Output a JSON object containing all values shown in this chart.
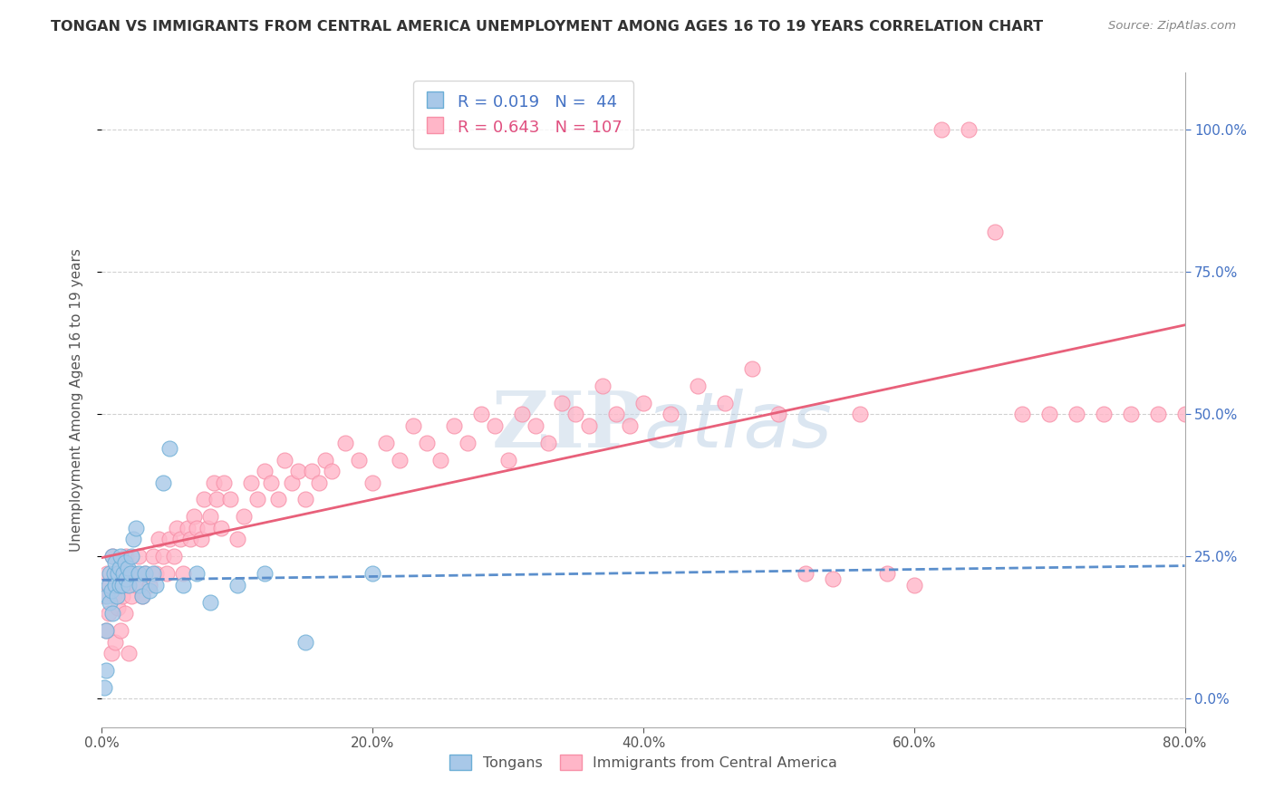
{
  "title": "TONGAN VS IMMIGRANTS FROM CENTRAL AMERICA UNEMPLOYMENT AMONG AGES 16 TO 19 YEARS CORRELATION CHART",
  "source": "Source: ZipAtlas.com",
  "ylabel": "Unemployment Among Ages 16 to 19 years",
  "xlim": [
    0.0,
    0.8
  ],
  "ylim": [
    -0.05,
    1.1
  ],
  "tongan_R": 0.019,
  "tongan_N": 44,
  "central_america_R": 0.643,
  "central_america_N": 107,
  "tongan_color": "#a8c8e8",
  "tongan_edge_color": "#6baed6",
  "central_america_color": "#ffb6c8",
  "central_america_edge_color": "#f78fa7",
  "tongan_line_color": "#5b8fcc",
  "central_america_line_color": "#e8607a",
  "background_color": "#ffffff",
  "grid_color": "#cccccc",
  "right_tick_color": "#4472c4",
  "title_color": "#333333",
  "source_color": "#888888",
  "legend_text_color_tongan": "#4472c4",
  "legend_text_color_ca": "#e05080",
  "bottom_label_color": "#555555",
  "tongan_x": [
    0.002,
    0.003,
    0.003,
    0.004,
    0.005,
    0.006,
    0.006,
    0.007,
    0.008,
    0.008,
    0.009,
    0.01,
    0.01,
    0.011,
    0.012,
    0.013,
    0.013,
    0.014,
    0.015,
    0.016,
    0.017,
    0.018,
    0.019,
    0.02,
    0.021,
    0.022,
    0.023,
    0.025,
    0.027,
    0.028,
    0.03,
    0.032,
    0.035,
    0.038,
    0.04,
    0.045,
    0.05,
    0.06,
    0.07,
    0.08,
    0.1,
    0.12,
    0.15,
    0.2
  ],
  "tongan_y": [
    0.02,
    0.05,
    0.12,
    0.18,
    0.2,
    0.22,
    0.17,
    0.19,
    0.15,
    0.25,
    0.22,
    0.2,
    0.24,
    0.18,
    0.22,
    0.2,
    0.23,
    0.25,
    0.2,
    0.22,
    0.24,
    0.21,
    0.23,
    0.2,
    0.22,
    0.25,
    0.28,
    0.3,
    0.22,
    0.2,
    0.18,
    0.22,
    0.19,
    0.22,
    0.2,
    0.38,
    0.44,
    0.2,
    0.22,
    0.17,
    0.2,
    0.22,
    0.1,
    0.22
  ],
  "ca_x": [
    0.002,
    0.003,
    0.004,
    0.005,
    0.006,
    0.007,
    0.008,
    0.009,
    0.01,
    0.01,
    0.012,
    0.013,
    0.014,
    0.015,
    0.016,
    0.017,
    0.018,
    0.019,
    0.02,
    0.022,
    0.024,
    0.025,
    0.027,
    0.03,
    0.032,
    0.035,
    0.038,
    0.04,
    0.042,
    0.045,
    0.048,
    0.05,
    0.053,
    0.055,
    0.058,
    0.06,
    0.063,
    0.065,
    0.068,
    0.07,
    0.073,
    0.075,
    0.078,
    0.08,
    0.083,
    0.085,
    0.088,
    0.09,
    0.095,
    0.1,
    0.105,
    0.11,
    0.115,
    0.12,
    0.125,
    0.13,
    0.135,
    0.14,
    0.145,
    0.15,
    0.155,
    0.16,
    0.165,
    0.17,
    0.18,
    0.19,
    0.2,
    0.21,
    0.22,
    0.23,
    0.24,
    0.25,
    0.26,
    0.27,
    0.28,
    0.29,
    0.3,
    0.31,
    0.32,
    0.33,
    0.34,
    0.35,
    0.36,
    0.37,
    0.38,
    0.39,
    0.4,
    0.42,
    0.44,
    0.46,
    0.48,
    0.5,
    0.52,
    0.54,
    0.56,
    0.58,
    0.6,
    0.62,
    0.64,
    0.66,
    0.68,
    0.7,
    0.72,
    0.74,
    0.76,
    0.78,
    0.8
  ],
  "ca_y": [
    0.18,
    0.12,
    0.22,
    0.15,
    0.2,
    0.08,
    0.25,
    0.18,
    0.22,
    0.1,
    0.16,
    0.2,
    0.12,
    0.18,
    0.22,
    0.15,
    0.25,
    0.2,
    0.08,
    0.18,
    0.22,
    0.2,
    0.25,
    0.18,
    0.22,
    0.2,
    0.25,
    0.22,
    0.28,
    0.25,
    0.22,
    0.28,
    0.25,
    0.3,
    0.28,
    0.22,
    0.3,
    0.28,
    0.32,
    0.3,
    0.28,
    0.35,
    0.3,
    0.32,
    0.38,
    0.35,
    0.3,
    0.38,
    0.35,
    0.28,
    0.32,
    0.38,
    0.35,
    0.4,
    0.38,
    0.35,
    0.42,
    0.38,
    0.4,
    0.35,
    0.4,
    0.38,
    0.42,
    0.4,
    0.45,
    0.42,
    0.38,
    0.45,
    0.42,
    0.48,
    0.45,
    0.42,
    0.48,
    0.45,
    0.5,
    0.48,
    0.42,
    0.5,
    0.48,
    0.45,
    0.52,
    0.5,
    0.48,
    0.55,
    0.5,
    0.48,
    0.52,
    0.5,
    0.55,
    0.52,
    0.58,
    0.5,
    0.22,
    0.21,
    0.5,
    0.22,
    0.2,
    1.0,
    1.0,
    0.82,
    0.5,
    0.5,
    0.5,
    0.5,
    0.5,
    0.5,
    0.5
  ]
}
